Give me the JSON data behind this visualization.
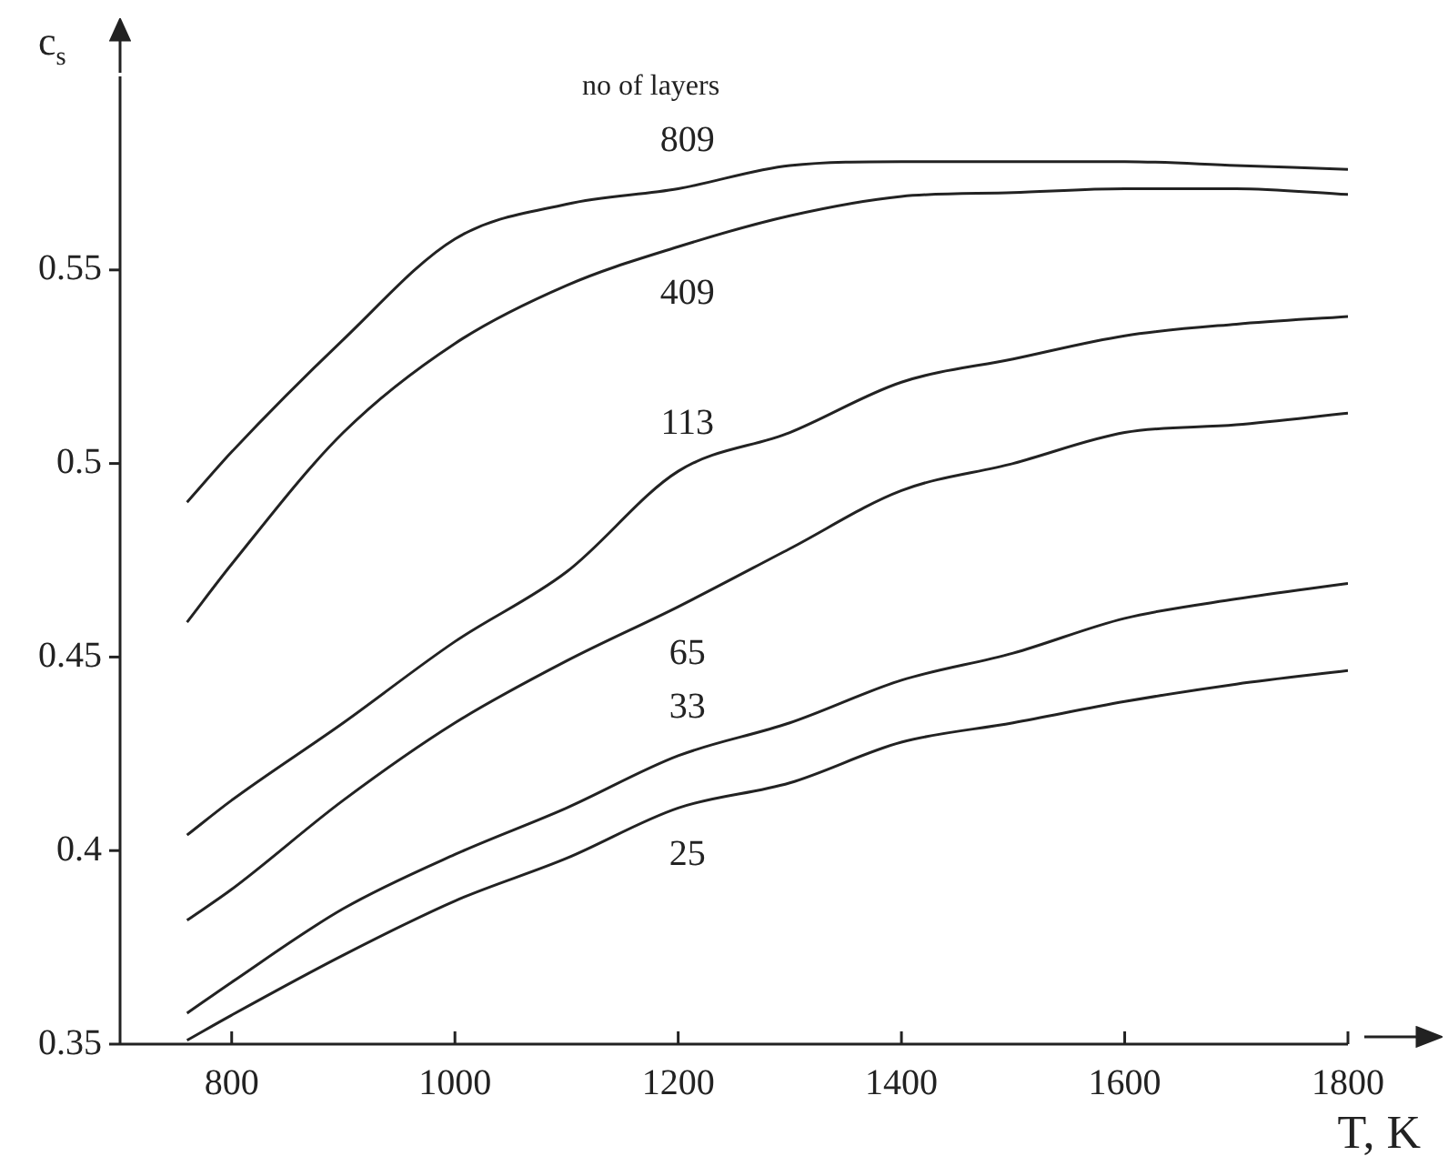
{
  "chart_data": {
    "type": "line",
    "xlabel": "T, K",
    "ylabel": "c$_{s}$",
    "xlim": [
      700,
      1800
    ],
    "xticks": [
      800,
      1000,
      1200,
      1400,
      1600,
      1800
    ],
    "ylim": [
      0.35,
      0.6
    ],
    "yticks": [
      0.35,
      0.4,
      0.45,
      0.5,
      0.55
    ],
    "grid": false,
    "legend": false,
    "marker": "none",
    "line_style": "solid",
    "x": [
      760,
      800,
      900,
      1000,
      1100,
      1200,
      1300,
      1400,
      1500,
      1600,
      1700,
      1800
    ],
    "series": [
      {
        "name": "809",
        "color": "#222222",
        "values": [
          0.49,
          0.503,
          0.532,
          0.558,
          0.567,
          0.571,
          0.577,
          0.578,
          0.578,
          0.578,
          0.577,
          0.576
        ]
      },
      {
        "name": "409",
        "color": "#222222",
        "values": [
          0.459,
          0.474,
          0.508,
          0.531,
          0.546,
          0.556,
          0.564,
          0.569,
          0.57,
          0.571,
          0.571,
          0.5695
        ]
      },
      {
        "name": "113",
        "color": "#222222",
        "values": [
          0.404,
          0.413,
          0.433,
          0.454,
          0.472,
          0.498,
          0.508,
          0.521,
          0.527,
          0.533,
          0.536,
          0.538
        ]
      },
      {
        "name": "65",
        "color": "#222222",
        "values": [
          0.382,
          0.39,
          0.413,
          0.433,
          0.449,
          0.463,
          0.478,
          0.493,
          0.5,
          0.508,
          0.51,
          0.513
        ]
      },
      {
        "name": "33",
        "color": "#222222",
        "values": [
          0.358,
          0.366,
          0.385,
          0.399,
          0.411,
          0.4245,
          0.433,
          0.444,
          0.451,
          0.46,
          0.465,
          0.469
        ]
      },
      {
        "name": "25",
        "color": "#222222",
        "values": [
          0.351,
          0.3575,
          0.373,
          0.387,
          0.398,
          0.411,
          0.4175,
          0.428,
          0.433,
          0.4385,
          0.443,
          0.4465
        ]
      }
    ],
    "legend_title": "no of layers"
  }
}
